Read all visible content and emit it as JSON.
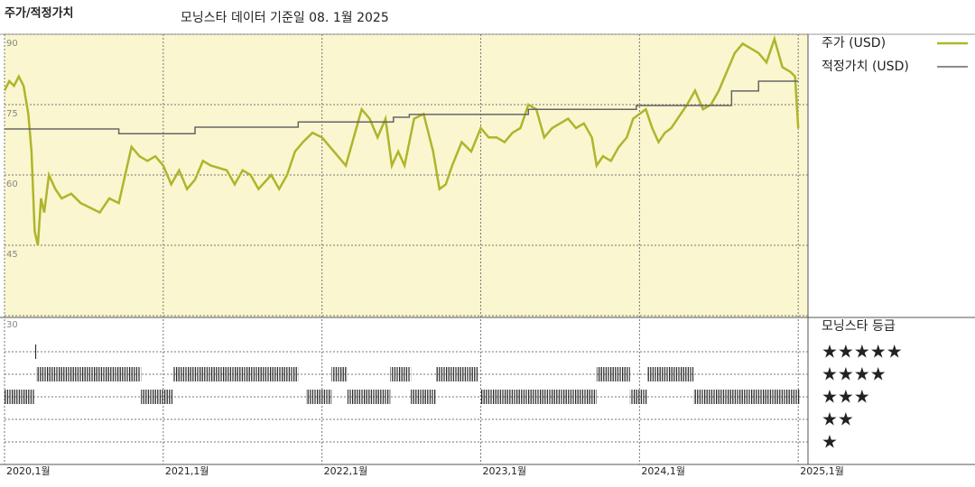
{
  "chart_data": {
    "type": "line",
    "title": "주가/적정가치",
    "subtitle": "모닝스타 데이터 기준일 08. 1월 2025",
    "xlim": [
      2020,
      2025.05
    ],
    "xticks": [
      {
        "value": 2020,
        "label": "2020,1월"
      },
      {
        "value": 2021,
        "label": "2021,1월"
      },
      {
        "value": 2022,
        "label": "2022,1월"
      },
      {
        "value": 2023,
        "label": "2023,1월"
      },
      {
        "value": 2024,
        "label": "2024,1월"
      },
      {
        "value": 2025,
        "label": "2025,1월"
      }
    ],
    "ylim": [
      30,
      90
    ],
    "yticks": [
      30,
      45,
      60,
      75,
      90
    ],
    "background": "#faf6cf",
    "series": [
      {
        "name": "주가 (USD)",
        "color": "#afb52c",
        "step": false,
        "x": [
          2020.0,
          2020.03,
          2020.06,
          2020.09,
          2020.12,
          2020.15,
          2020.17,
          2020.19,
          2020.21,
          2020.23,
          2020.25,
          2020.28,
          2020.32,
          2020.36,
          2020.42,
          2020.48,
          2020.54,
          2020.6,
          2020.66,
          2020.72,
          2020.76,
          2020.8,
          2020.85,
          2020.9,
          2020.95,
          2021.0,
          2021.05,
          2021.1,
          2021.15,
          2021.2,
          2021.25,
          2021.3,
          2021.4,
          2021.45,
          2021.5,
          2021.55,
          2021.6,
          2021.68,
          2021.73,
          2021.78,
          2021.83,
          2021.88,
          2021.94,
          2022.0,
          2022.05,
          2022.1,
          2022.15,
          2022.2,
          2022.25,
          2022.3,
          2022.35,
          2022.4,
          2022.44,
          2022.48,
          2022.52,
          2022.58,
          2022.64,
          2022.7,
          2022.74,
          2022.78,
          2022.82,
          2022.88,
          2022.94,
          2023.0,
          2023.05,
          2023.1,
          2023.15,
          2023.2,
          2023.25,
          2023.3,
          2023.35,
          2023.4,
          2023.45,
          2023.5,
          2023.55,
          2023.6,
          2023.65,
          2023.7,
          2023.73,
          2023.77,
          2023.82,
          2023.87,
          2023.92,
          2023.96,
          2024.0,
          2024.04,
          2024.08,
          2024.12,
          2024.16,
          2024.2,
          2024.24,
          2024.3,
          2024.35,
          2024.4,
          2024.45,
          2024.5,
          2024.55,
          2024.6,
          2024.65,
          2024.7,
          2024.75,
          2024.8,
          2024.85,
          2024.9,
          2024.95,
          2024.98,
          2025.0
        ],
        "values": [
          78,
          80,
          79,
          81,
          79,
          73,
          65,
          48,
          45,
          55,
          52,
          60,
          57,
          55,
          56,
          54,
          53,
          52,
          55,
          54,
          60,
          66,
          64,
          63,
          64,
          62,
          58,
          61,
          57,
          59,
          63,
          62,
          61,
          58,
          61,
          60,
          57,
          60,
          57,
          60,
          65,
          67,
          69,
          68,
          66,
          64,
          62,
          68,
          74,
          72,
          68,
          72,
          62,
          65,
          62,
          72,
          73,
          65,
          57,
          58,
          62,
          67,
          65,
          70,
          68,
          68,
          67,
          69,
          70,
          75,
          74,
          68,
          70,
          71,
          72,
          70,
          71,
          68,
          62,
          64,
          63,
          66,
          68,
          72,
          73,
          74,
          70,
          67,
          69,
          70,
          72,
          75,
          78,
          74,
          75,
          78,
          82,
          86,
          88,
          87,
          86,
          84,
          89,
          83,
          82,
          81,
          70
        ]
      },
      {
        "name": "적정가치 (USD)",
        "color": "#666666",
        "step": true,
        "x": [
          2020.0,
          2020.72,
          2021.2,
          2021.85,
          2022.45,
          2022.55,
          2023.3,
          2023.98,
          2024.58,
          2024.75,
          2025.0
        ],
        "values": [
          69.8,
          68.8,
          70.2,
          71.3,
          72.3,
          72.9,
          74,
          74.8,
          77.9,
          80,
          80
        ]
      }
    ],
    "ratings_title": "모닝스타 등급",
    "rating_levels": [
      5,
      4,
      3,
      2,
      1
    ],
    "rating_labels": [
      "★★★★★",
      "★★★★",
      "★★★",
      "★★",
      "★"
    ],
    "rating_color": "#222222",
    "ratings": {
      "start": [
        2020.0,
        2020.19,
        2020.2,
        2020.86,
        2021.06,
        2021.9,
        2022.06,
        2022.16,
        2022.43,
        2022.56,
        2022.72,
        2023.0,
        2023.73,
        2023.94,
        2024.05,
        2024.34
      ],
      "end": [
        2020.19,
        2020.2,
        2020.86,
        2021.06,
        2021.85,
        2022.06,
        2022.16,
        2022.43,
        2022.56,
        2022.72,
        2022.98,
        2023.73,
        2023.94,
        2024.05,
        2024.34,
        2025.01
      ],
      "values": [
        3,
        5,
        4,
        3,
        4,
        3,
        4,
        3,
        4,
        3,
        4,
        3,
        4,
        3,
        4,
        3
      ]
    }
  }
}
